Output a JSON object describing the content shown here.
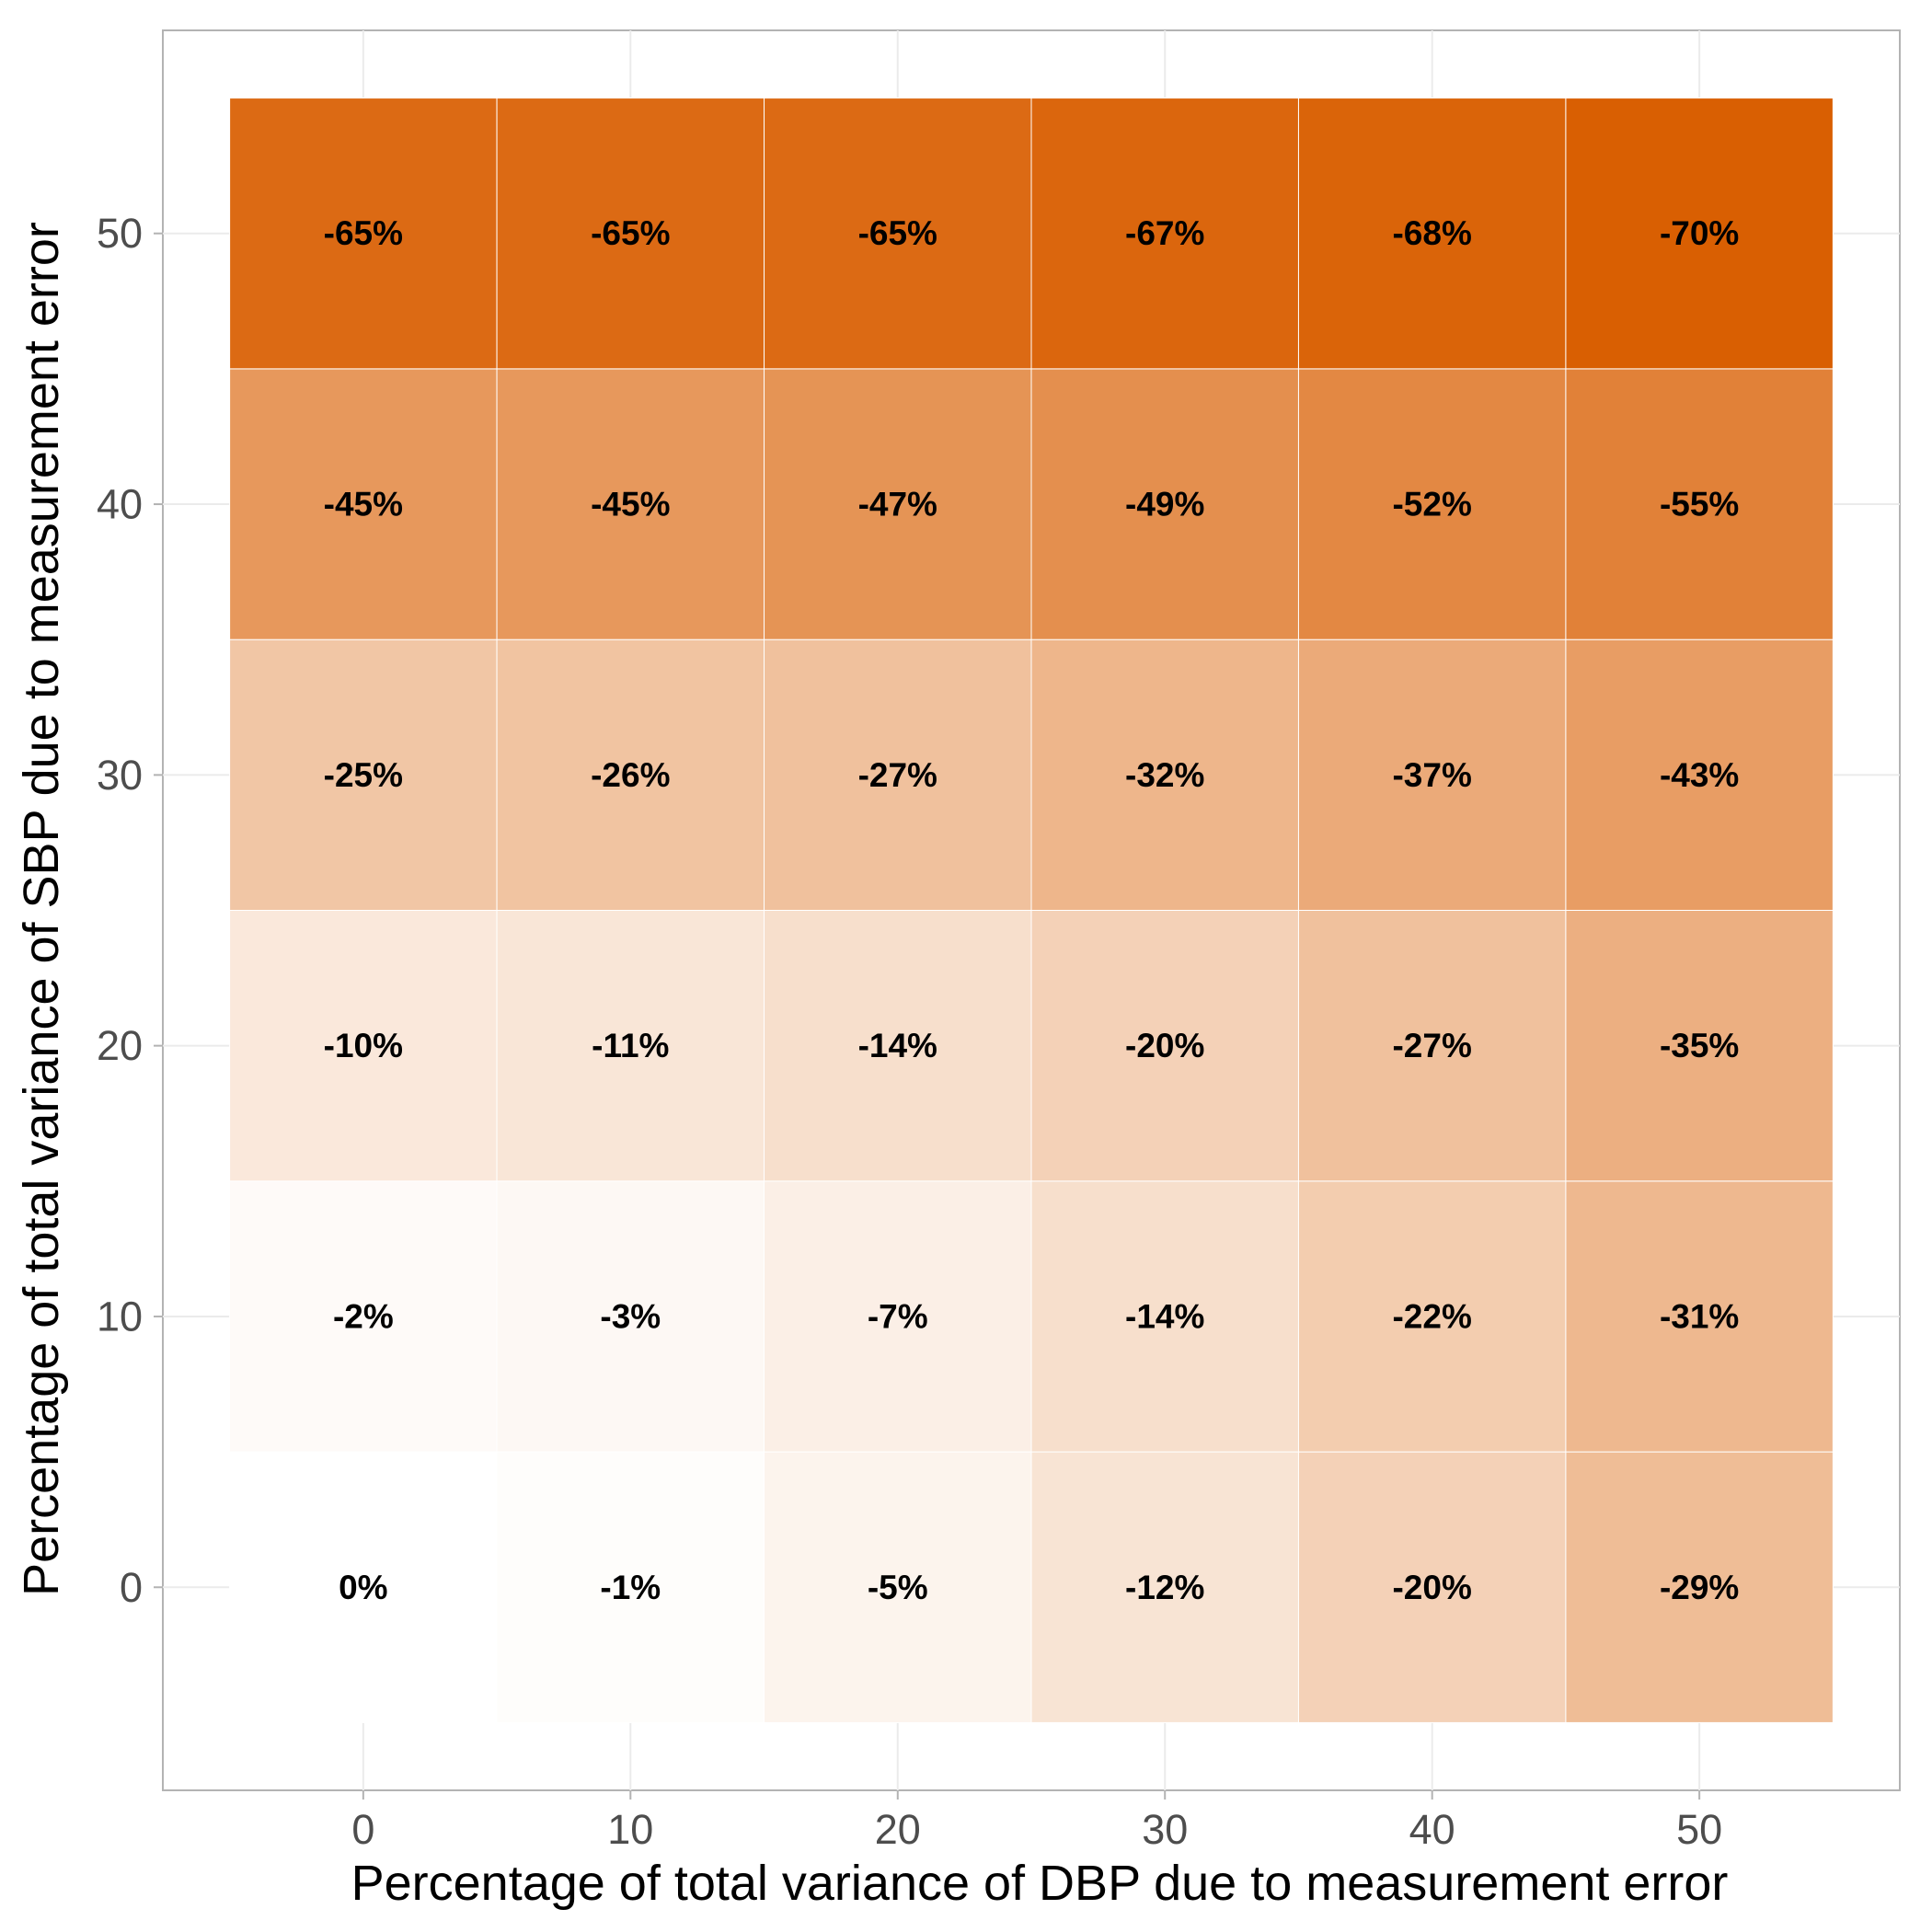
{
  "chart_data": {
    "type": "heatmap",
    "xlabel": "Percentage of total variance of DBP due to measurement error",
    "ylabel": "Percentage of total variance of SBP due to measurement error",
    "x": [
      0,
      10,
      20,
      30,
      40,
      50
    ],
    "y": [
      0,
      10,
      20,
      30,
      40,
      50
    ],
    "x_tick_labels": [
      "0",
      "10",
      "20",
      "30",
      "40",
      "50"
    ],
    "y_tick_labels": [
      "0",
      "10",
      "20",
      "30",
      "40",
      "50"
    ],
    "xlim": [
      -7.5,
      57.5
    ],
    "ylim": [
      -7.5,
      57.5
    ],
    "values": [
      [
        0,
        -1,
        -5,
        -12,
        -20,
        -29
      ],
      [
        -2,
        -3,
        -7,
        -14,
        -22,
        -31
      ],
      [
        -10,
        -11,
        -14,
        -20,
        -27,
        -35
      ],
      [
        -25,
        -26,
        -27,
        -32,
        -37,
        -43
      ],
      [
        -45,
        -45,
        -47,
        -49,
        -52,
        -55
      ],
      [
        -65,
        -65,
        -65,
        -67,
        -68,
        -70
      ]
    ],
    "labels": [
      [
        "0%",
        "-1%",
        "-5%",
        "-12%",
        "-20%",
        "-29%"
      ],
      [
        "-2%",
        "-3%",
        "-7%",
        "-14%",
        "-22%",
        "-31%"
      ],
      [
        "-10%",
        "-11%",
        "-14%",
        "-20%",
        "-27%",
        "-35%"
      ],
      [
        "-25%",
        "-26%",
        "-27%",
        "-32%",
        "-37%",
        "-43%"
      ],
      [
        "-45%",
        "-45%",
        "-47%",
        "-49%",
        "-52%",
        "-55%"
      ],
      [
        "-65%",
        "-65%",
        "-65%",
        "-67%",
        "-68%",
        "-70%"
      ]
    ],
    "color_low": "#d95f02",
    "color_high": "#ffffff",
    "grid": true,
    "legend": "none"
  }
}
